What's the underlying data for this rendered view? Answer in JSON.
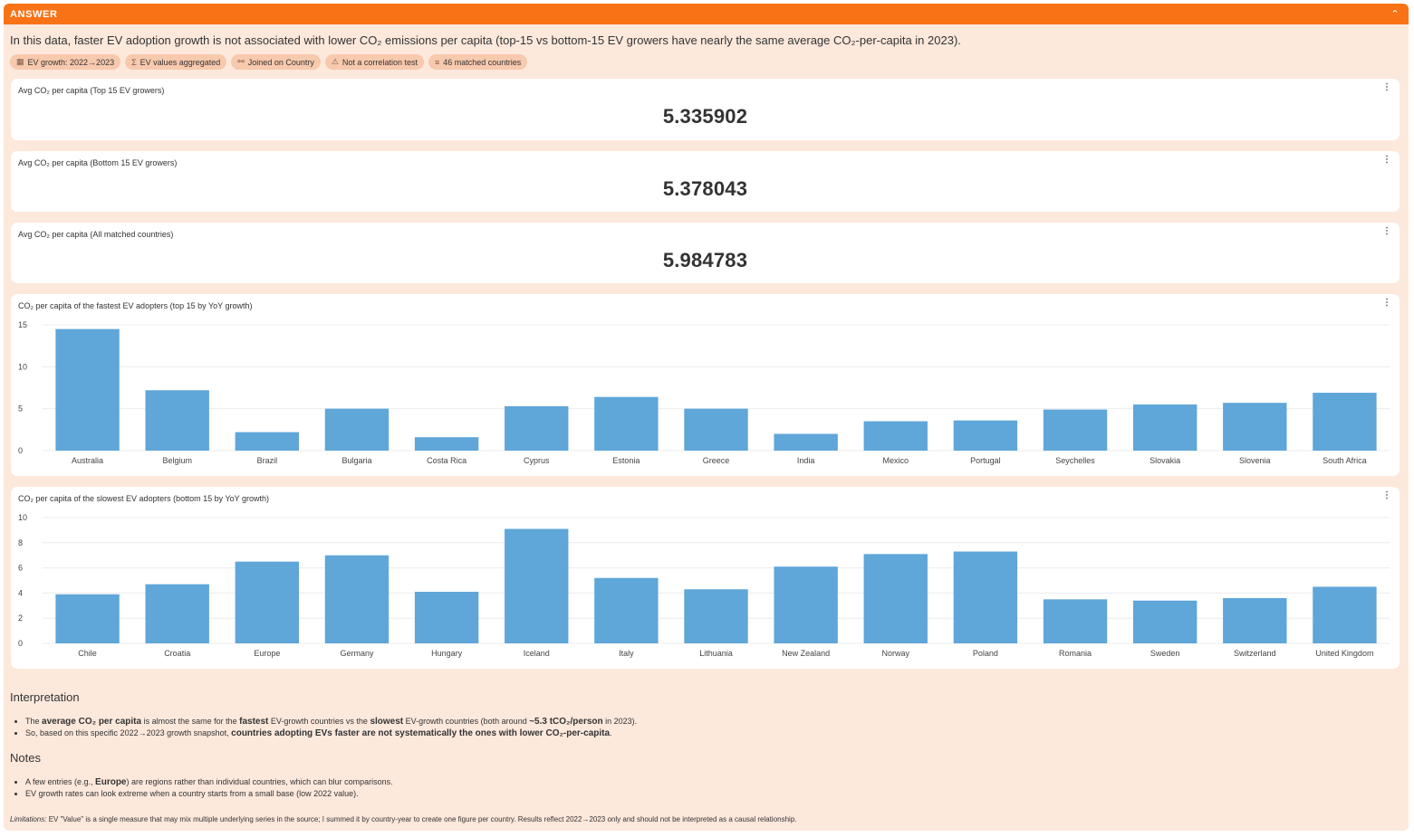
{
  "header": {
    "title": "ANSWER",
    "collapse_icon": "chevron-up-icon"
  },
  "summary": "In this data, faster EV adoption growth is not associated with lower CO₂ emissions per capita (top-15 vs bottom-15 EV growers have nearly the same average CO₂-per-capita in 2023).",
  "chips": [
    {
      "icon": "calendar-icon",
      "glyph": "▦",
      "label": "EV growth: 2022→2023"
    },
    {
      "icon": "sigma-icon",
      "glyph": "Σ",
      "label": "EV values aggregated"
    },
    {
      "icon": "link-icon",
      "glyph": "⚯",
      "label": "Joined on Country"
    },
    {
      "icon": "warning-icon",
      "glyph": "⚠",
      "label": "Not a correlation test"
    },
    {
      "icon": "list-icon",
      "glyph": "≡",
      "label": "46 matched countries"
    }
  ],
  "metrics": [
    {
      "title": "Avg CO₂ per capita (Top 15 EV growers)",
      "value": "5.335902"
    },
    {
      "title": "Avg CO₂ per capita (Bottom 15 EV growers)",
      "value": "5.378043"
    },
    {
      "title": "Avg CO₂ per capita (All matched countries)",
      "value": "5.984783"
    }
  ],
  "chart_data": [
    {
      "type": "bar",
      "title": "CO₂ per capita of the fastest EV adopters (top 15 by YoY growth)",
      "categories": [
        "Australia",
        "Belgium",
        "Brazil",
        "Bulgaria",
        "Costa Rica",
        "Cyprus",
        "Estonia",
        "Greece",
        "India",
        "Mexico",
        "Portugal",
        "Seychelles",
        "Slovakia",
        "Slovenia",
        "South Africa"
      ],
      "values": [
        14.5,
        7.2,
        2.2,
        5.0,
        1.6,
        5.3,
        6.4,
        5.0,
        2.0,
        3.5,
        3.6,
        4.9,
        5.5,
        5.7,
        6.9
      ],
      "ylim": [
        0,
        15
      ],
      "yticks": [
        0,
        5,
        10,
        15
      ],
      "xlabel": "",
      "ylabel": "",
      "color": "#5fa6d9"
    },
    {
      "type": "bar",
      "title": "CO₂ per capita of the slowest EV adopters (bottom 15 by YoY growth)",
      "categories": [
        "Chile",
        "Croatia",
        "Europe",
        "Germany",
        "Hungary",
        "Iceland",
        "Italy",
        "Lithuania",
        "New Zealand",
        "Norway",
        "Poland",
        "Romania",
        "Sweden",
        "Switzerland",
        "United Kingdom"
      ],
      "values": [
        3.9,
        4.7,
        6.5,
        7.0,
        4.1,
        9.1,
        5.2,
        4.3,
        6.1,
        7.1,
        7.3,
        3.5,
        3.4,
        3.6,
        4.5
      ],
      "ylim": [
        0,
        10
      ],
      "yticks": [
        0,
        2,
        4,
        6,
        8,
        10
      ],
      "xlabel": "",
      "ylabel": "",
      "color": "#5fa6d9"
    }
  ],
  "interpretation": {
    "heading": "Interpretation",
    "b1_pre": "The ",
    "b1_bold1": "average CO₂ per capita",
    "b1_mid1": " is almost the same for the ",
    "b1_bold2": "fastest",
    "b1_mid2": " EV-growth countries vs the ",
    "b1_bold3": "slowest",
    "b1_mid3": " EV-growth countries (both around ",
    "b1_bold4": "~5.3 tCO₂/person",
    "b1_post": " in 2023).",
    "b2_pre": "So, based on this specific 2022→2023 growth snapshot, ",
    "b2_bold": "countries adopting EVs faster are not systematically the ones with lower CO₂-per-capita",
    "b2_post": "."
  },
  "notes": {
    "heading": "Notes",
    "n1_pre": "A few entries (e.g., ",
    "n1_bold": "Europe",
    "n1_post": ") are regions rather than individual countries, which can blur comparisons.",
    "n2": "EV growth rates can look extreme when a country starts from a small base (low 2022 value)."
  },
  "limitations": {
    "label": "Limitations:",
    "text": " EV \"Value\" is a single measure that may mix multiple underlying series in the source; I summed it by country-year to create one figure per country. Results reflect 2022→2023 only and should not be interpreted as a causal relationship."
  }
}
